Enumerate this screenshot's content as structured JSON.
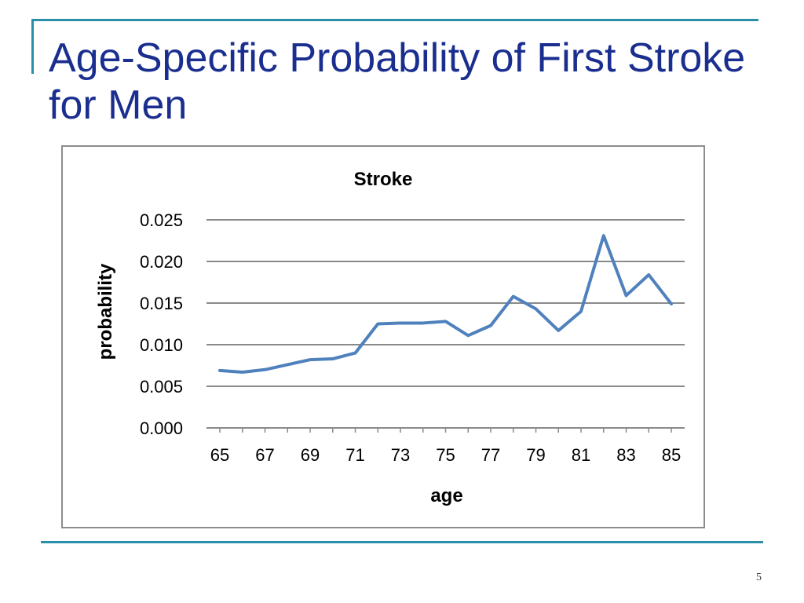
{
  "slide": {
    "title": "Age-Specific Probability of First Stroke for Men",
    "page_number": "5",
    "accent_color": "#2a8fa8",
    "title_color": "#1a2e8f"
  },
  "chart_data": {
    "type": "line",
    "title": "Stroke",
    "xlabel": "age",
    "ylabel": "probability",
    "x": [
      65,
      66,
      67,
      68,
      69,
      70,
      71,
      72,
      73,
      74,
      75,
      76,
      77,
      78,
      79,
      80,
      81,
      82,
      83,
      84,
      85
    ],
    "x_tick_labels": [
      "65",
      "67",
      "69",
      "71",
      "73",
      "75",
      "77",
      "79",
      "81",
      "83",
      "85"
    ],
    "y_tick_labels": [
      "0.000",
      "0.005",
      "0.010",
      "0.015",
      "0.020",
      "0.025"
    ],
    "ylim": [
      0,
      0.025
    ],
    "grid": true,
    "line_color": "#4f81bd",
    "series": [
      {
        "values": [
          0.0069,
          0.0067,
          0.007,
          0.0076,
          0.0082,
          0.0083,
          0.009,
          0.0125,
          0.0126,
          0.0126,
          0.0128,
          0.0111,
          0.0123,
          0.0158,
          0.0143,
          0.0117,
          0.014,
          0.0231,
          0.0159,
          0.0184,
          0.0149
        ]
      }
    ]
  }
}
